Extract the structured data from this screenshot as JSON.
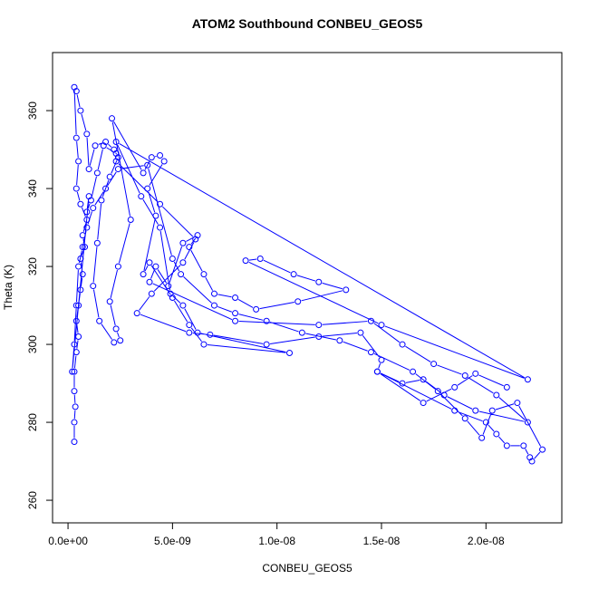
{
  "chart_data": {
    "type": "line",
    "title": "ATOM2 Southbound CONBEU_GEOS5",
    "xlabel": "CONBEU_GEOS5",
    "ylabel": "Theta (K)",
    "color": "#0000ff",
    "marker": "open-circle",
    "xlim": [
      -7.4e-10,
      2.363e-08
    ],
    "ylim": [
      254.2,
      374.9
    ],
    "xticks": [
      {
        "value": 0,
        "label": "0.0e+00"
      },
      {
        "value": 5e-09,
        "label": "5.0e-09"
      },
      {
        "value": 1e-08,
        "label": "1.0e-08"
      },
      {
        "value": 1.5e-08,
        "label": "1.5e-08"
      },
      {
        "value": 2e-08,
        "label": "2.0e-08"
      }
    ],
    "yticks": [
      260,
      280,
      300,
      320,
      340,
      360
    ],
    "x": [
      3e-10,
      3e-10,
      3.5e-10,
      3e-10,
      3e-10,
      4e-10,
      5e-10,
      4e-10,
      5e-10,
      6e-10,
      7e-10,
      6e-10,
      8e-10,
      7e-10,
      9e-10,
      6e-10,
      4e-10,
      5e-10,
      4e-10,
      3e-10,
      4e-10,
      6e-10,
      9e-10,
      1e-09,
      1.3e-09,
      1.8e-09,
      2.2e-09,
      2.4e-09,
      2e-09,
      1.6e-09,
      1.4e-09,
      1.2e-09,
      1.5e-09,
      2.2e-09,
      2.5e-09,
      2.3e-09,
      2e-09,
      2.4e-09,
      3e-09,
      2.1e-09,
      3.6e-09,
      4e-09,
      4.4e-09,
      4.6e-09,
      3.8e-09,
      4.2e-09,
      3.6e-09,
      3.9e-09,
      5e-09,
      5.8e-09,
      6.5e-09,
      1.06e-08,
      6.2e-09,
      5.5e-09,
      4.9e-09,
      4.4e-09,
      3.5e-09,
      2.3e-09,
      2.2e-08,
      1.5e-08,
      8.5e-09,
      9.2e-09,
      1.08e-08,
      1.2e-08,
      1.33e-08,
      1.1e-08,
      9e-09,
      8e-09,
      7e-09,
      6.5e-09,
      5.8e-09,
      6.2e-09,
      5.5e-09,
      4.8e-09,
      4.2e-09,
      3.9e-09,
      8e-09,
      1.2e-08,
      1.45e-08,
      1.6e-08,
      1.75e-08,
      1.9e-08,
      2.05e-08,
      2.2e-08,
      1.95e-08,
      1.8e-08,
      1.7e-08,
      1.6e-08,
      1.48e-08,
      1.85e-08,
      2e-08,
      2.05e-08,
      2.1e-08,
      2.18e-08,
      2.21e-08,
      2.22e-08,
      2.27e-08,
      2.15e-08,
      2.03e-08,
      1.98e-08,
      1.9e-08,
      1.77e-08,
      1.65e-08,
      1.45e-08,
      1.3e-08,
      1.12e-08,
      9.5e-09,
      8e-09,
      7e-09,
      5.4e-09,
      5e-09,
      3.8e-09,
      2.4e-09,
      1.8e-09,
      1.2e-09,
      9e-10,
      7e-10,
      5e-10,
      4e-10,
      3e-10,
      2e-10,
      1e-09,
      9e-10,
      1.1e-09,
      1.4e-09,
      1.7e-09,
      2.3e-09,
      2.3e-09,
      4.4e-09,
      6.1e-09,
      5.5e-09,
      4e-09,
      3.3e-09,
      5.8e-09,
      6.8e-09,
      9.5e-09,
      1.2e-08,
      1.4e-08,
      1.5e-08,
      1.48e-08,
      1.7e-08,
      1.85e-08,
      1.95e-08,
      2.1e-08
    ],
    "values": [
      275,
      280,
      284,
      288,
      293,
      298,
      302,
      306,
      310,
      314,
      318,
      322,
      325,
      328,
      332,
      336,
      340,
      347,
      353,
      366,
      365,
      360,
      354,
      345,
      351,
      352,
      350,
      348,
      343,
      337,
      326,
      315,
      306,
      300.5,
      301,
      304,
      311,
      320,
      332,
      358,
      344,
      348,
      348.5,
      347,
      340,
      333,
      318,
      321,
      312,
      305,
      300,
      297.8,
      303,
      310,
      313,
      330,
      338,
      352,
      291,
      305,
      321.5,
      322,
      318,
      316,
      314,
      311,
      309,
      312,
      313,
      318,
      325,
      328,
      326,
      315,
      320,
      316,
      306,
      305,
      306,
      300,
      295,
      292,
      287,
      280,
      283,
      287,
      291,
      290,
      293,
      283,
      280,
      277,
      274,
      274,
      271,
      270,
      273,
      285,
      283,
      276,
      281,
      288,
      293,
      298,
      301,
      303,
      306,
      308,
      310,
      318,
      322,
      346,
      345,
      340,
      335,
      330,
      325,
      320,
      310,
      300,
      293,
      338,
      334,
      337,
      344,
      351,
      349,
      347,
      336,
      327,
      321,
      313,
      308,
      303,
      302.5,
      300,
      302,
      303,
      296,
      293,
      285,
      289,
      292.5,
      289
    ]
  }
}
